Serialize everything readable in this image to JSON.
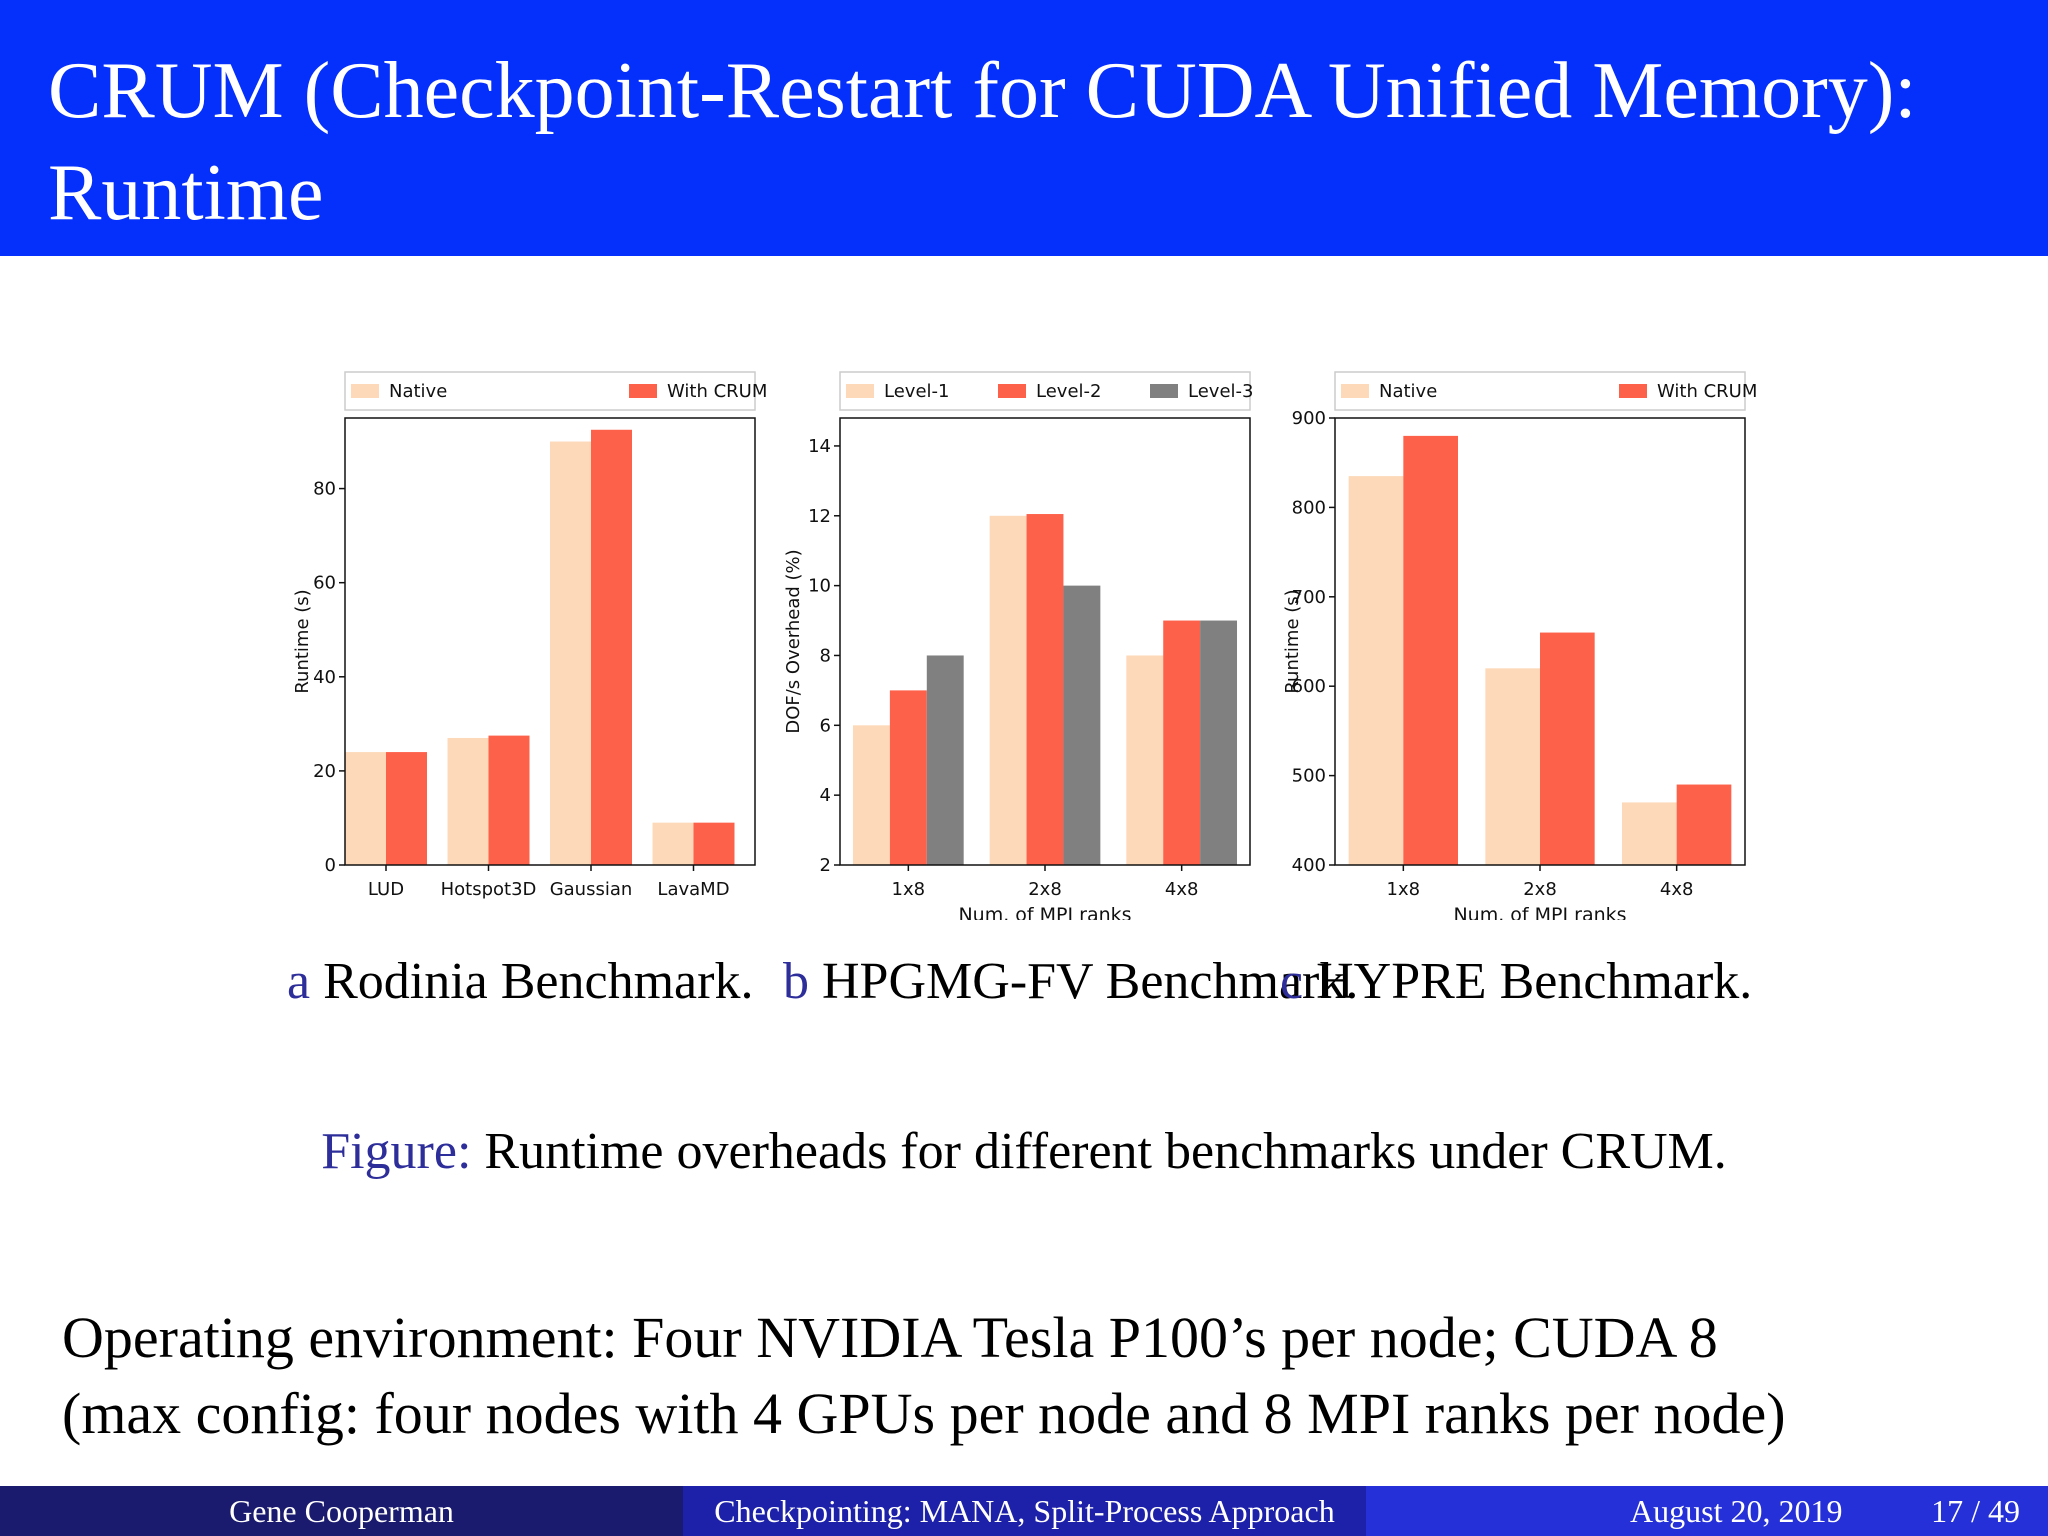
{
  "slide": {
    "title": "CRUM (Checkpoint-Restart for CUDA Unified Memory): Runtime"
  },
  "colors": {
    "header_bg": "#052ffb",
    "native": "#fdd9b9",
    "with_crum": "#fe614a",
    "level_1": "#fdd9b9",
    "level_2": "#fe614a",
    "level_3": "#808080",
    "caption_label": "#2e2e9a"
  },
  "subcaptions": [
    {
      "label": "a",
      "text": "Rodinia Benchmark."
    },
    {
      "label": "b",
      "text": "HPGMG-FV Benchmark."
    },
    {
      "label": "c",
      "text": "HYPRE Benchmark."
    }
  ],
  "figure_caption": {
    "label": "Figure:",
    "text": "Runtime overheads for different benchmarks under CRUM."
  },
  "environment": {
    "line1": "Operating environment: Four NVIDIA Tesla P100’s per node; CUDA 8",
    "line2": "(max config: four nodes with 4 GPUs per node and 8 MPI ranks per node)"
  },
  "footer": {
    "author": "Gene Cooperman",
    "talk_title": "Checkpointing: MANA, Split-Process Approach",
    "date": "August 20, 2019",
    "page": "17 / 49"
  },
  "chart_data": [
    {
      "type": "bar",
      "categories": [
        "LUD",
        "Hotspot3D",
        "Gaussian",
        "LavaMD"
      ],
      "series": [
        {
          "name": "Native",
          "values": [
            24,
            27,
            90,
            9
          ]
        },
        {
          "name": "With CRUM",
          "values": [
            24,
            27.5,
            92.5,
            9
          ]
        }
      ],
      "ylabel": "Runtime (s)",
      "xlabel": "",
      "ylim": [
        0,
        95
      ],
      "yticks": [
        0,
        20,
        40,
        60,
        80
      ],
      "legend": "top"
    },
    {
      "type": "bar",
      "categories": [
        "1x8",
        "2x8",
        "4x8"
      ],
      "series": [
        {
          "name": "Level-1",
          "values": [
            6,
            12,
            8
          ]
        },
        {
          "name": "Level-2",
          "values": [
            7,
            12.05,
            9
          ]
        },
        {
          "name": "Level-3",
          "values": [
            8,
            10,
            9
          ]
        }
      ],
      "ylabel": "DOF/s Overhead (%)",
      "xlabel": "Num. of MPI ranks",
      "ylim": [
        2,
        14.8
      ],
      "yticks": [
        2,
        4,
        6,
        8,
        10,
        12,
        14
      ],
      "legend": "top"
    },
    {
      "type": "bar",
      "categories": [
        "1x8",
        "2x8",
        "4x8"
      ],
      "series": [
        {
          "name": "Native",
          "values": [
            835,
            620,
            470
          ]
        },
        {
          "name": "With CRUM",
          "values": [
            880,
            660,
            490
          ]
        }
      ],
      "ylabel": "Runtime (s)",
      "xlabel": "Num. of MPI ranks",
      "ylim": [
        400,
        900
      ],
      "yticks": [
        400,
        500,
        600,
        700,
        800,
        900
      ],
      "legend": "top"
    }
  ]
}
